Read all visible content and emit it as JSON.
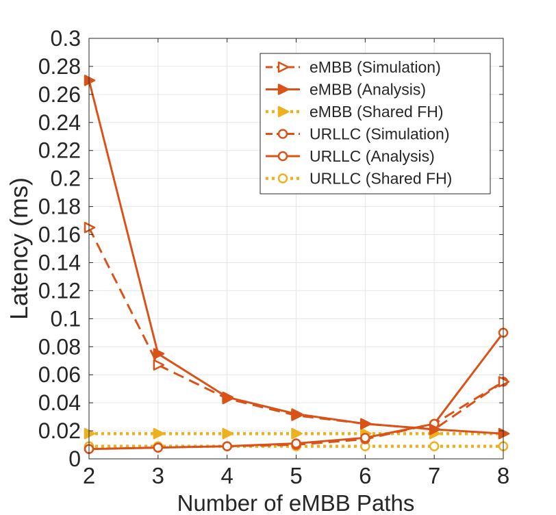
{
  "chart_data": {
    "type": "line",
    "title": "",
    "xlabel": "Number of eMBB Paths",
    "ylabel": "Latency (ms)",
    "xlim": [
      2,
      8
    ],
    "ylim": [
      0,
      0.3
    ],
    "x": [
      2,
      3,
      4,
      5,
      6,
      7,
      8
    ],
    "xticks": [
      "2",
      "3",
      "4",
      "5",
      "6",
      "7",
      "8"
    ],
    "yticks": [
      "0",
      "0.02",
      "0.04",
      "0.06",
      "0.08",
      "0.1",
      "0.12",
      "0.14",
      "0.16",
      "0.18",
      "0.2",
      "0.22",
      "0.24",
      "0.26",
      "0.28",
      "0.3"
    ],
    "ytick_values": [
      0,
      0.02,
      0.04,
      0.06,
      0.08,
      0.1,
      0.12,
      0.14,
      0.16,
      0.18,
      0.2,
      0.22,
      0.24,
      0.26,
      0.28,
      0.3
    ],
    "grid": true,
    "legend_position": "top-right",
    "series": [
      {
        "name": "eMBB (Simulation)",
        "color": "#D95319",
        "line": "dashed",
        "marker": "triangle-right-open",
        "values": [
          0.165,
          0.067,
          0.043,
          0.031,
          0.025,
          0.021,
          0.055
        ]
      },
      {
        "name": "eMBB (Analysis)",
        "color": "#D95319",
        "line": "solid",
        "marker": "triangle-right-filled",
        "values": [
          0.27,
          0.075,
          0.044,
          0.032,
          0.025,
          0.021,
          0.018
        ]
      },
      {
        "name": "eMBB (Shared FH)",
        "color": "#EDB120",
        "line": "dotted",
        "marker": "triangle-right-filled",
        "values": [
          0.018,
          0.018,
          0.018,
          0.018,
          0.018,
          0.018,
          0.018
        ]
      },
      {
        "name": "URLLC (Simulation)",
        "color": "#D95319",
        "line": "dashed",
        "marker": "circle-open",
        "values": [
          0.007,
          0.008,
          0.009,
          0.01,
          0.014,
          0.025,
          0.055
        ]
      },
      {
        "name": "URLLC (Analysis)",
        "color": "#D95319",
        "line": "solid",
        "marker": "circle-open",
        "values": [
          0.007,
          0.008,
          0.009,
          0.011,
          0.015,
          0.025,
          0.09
        ]
      },
      {
        "name": "URLLC (Shared FH)",
        "color": "#EDB120",
        "line": "dotted",
        "marker": "circle-open",
        "values": [
          0.009,
          0.009,
          0.009,
          0.009,
          0.009,
          0.009,
          0.009
        ]
      }
    ]
  }
}
